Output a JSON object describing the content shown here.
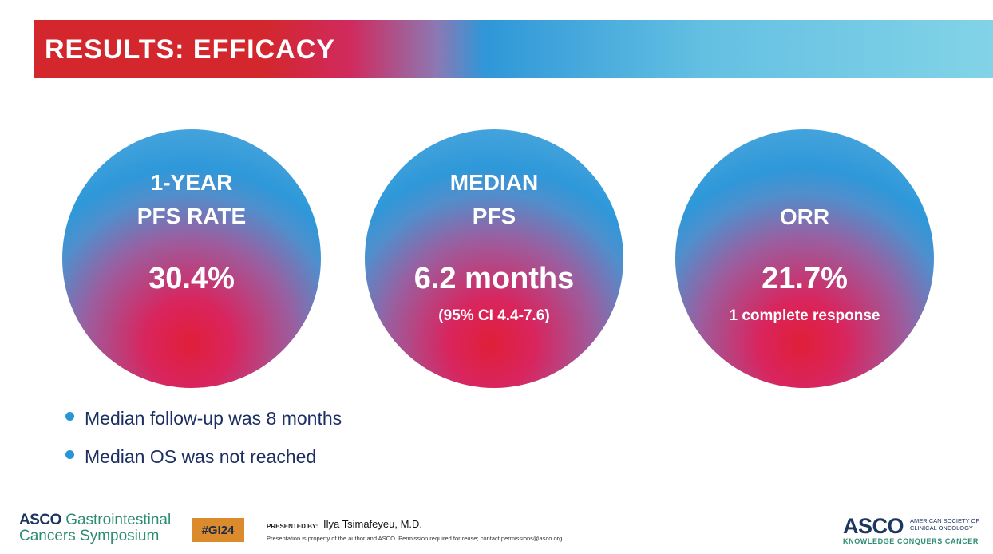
{
  "slide": {
    "title": "RESULTS: EFFICACY"
  },
  "metrics": [
    {
      "label_line1": "1-YEAR",
      "label_line2": "PFS RATE",
      "value": "30.4%",
      "sub": ""
    },
    {
      "label_line1": "MEDIAN",
      "label_line2": "PFS",
      "value": "6.2 months",
      "sub": "(95% CI 4.4-7.6)"
    },
    {
      "label_line1": "ORR",
      "label_line2": "",
      "value": "21.7%",
      "sub": "1 complete response"
    }
  ],
  "bullets": [
    "Median follow-up was 8 months",
    "Median OS was not reached"
  ],
  "footer": {
    "symposium_brand": "ASCO",
    "symposium_line1": "Gastrointestinal",
    "symposium_line2": "Cancers Symposium",
    "hashtag": "#GI24",
    "presented_by_label": "PRESENTED BY:",
    "presenter": "Ilya Tsimafeyeu, M.D.",
    "property_notice": "Presentation is property of the author and ASCO. Permission required for reuse; contact permissions@asco.org.",
    "asco_word": "ASCO",
    "asco_society_line1": "AMERICAN SOCIETY OF",
    "asco_society_line2": "CLINICAL ONCOLOGY",
    "asco_tagline": "KNOWLEDGE CONQUERS CANCER"
  },
  "colors": {
    "title_red": "#d3272d",
    "title_blue": "#2f97d8",
    "title_light_blue": "#82d3e7",
    "bullet_dot": "#2a95d6",
    "bullet_text": "#1c2f63",
    "hashtag_bg": "#dc8b2c",
    "asco_navy": "#1d3561",
    "asco_green": "#2c8d72"
  }
}
